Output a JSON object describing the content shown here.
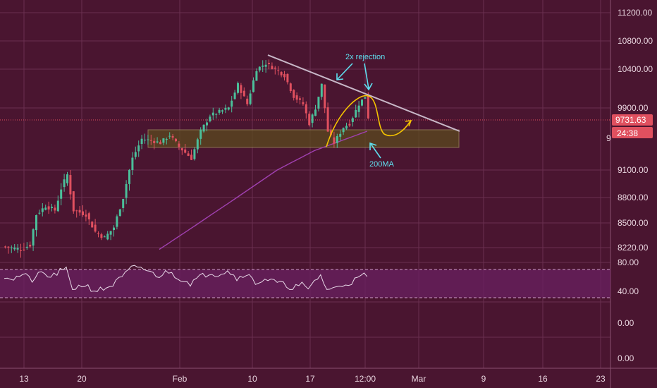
{
  "colors": {
    "background": "#4a1530",
    "grid": "#6a3050",
    "candle_up": "#4bbf9a",
    "candle_down": "#e0505f",
    "ma200": "#a040b0",
    "trendline": "#c8b8c8",
    "zone_fill": "#5a4a1e",
    "zone_stroke": "#a09060",
    "projection": "#f5c400",
    "annotation": "#5fe0f0",
    "rsi_line": "#e8d8e8",
    "rsi_band": "#6a2060",
    "price_tag": "#e0505f"
  },
  "chart_data": {
    "type": "candlestick",
    "price_axis": {
      "ticks": [
        "11200.00",
        "10800.00",
        "10400.00",
        "9900.00",
        "9100.00",
        "8800.00",
        "8500.00",
        "8220.00"
      ],
      "range": [
        8120,
        11400
      ]
    },
    "time_axis": {
      "ticks": [
        "13",
        "20",
        "Feb",
        "10",
        "17",
        "12:00",
        "Mar",
        "9",
        "16",
        "23"
      ]
    },
    "current_price": "9731.63",
    "countdown": "24:38",
    "partial_tick": "9",
    "series": [
      {
        "name": "price",
        "anchors": [
          [
            0,
            8230
          ],
          [
            5,
            8200
          ],
          [
            8,
            8250
          ],
          [
            10,
            8600
          ],
          [
            13,
            8700
          ],
          [
            16,
            8650
          ],
          [
            18,
            8900
          ],
          [
            20,
            9050
          ],
          [
            22,
            8650
          ],
          [
            26,
            8600
          ],
          [
            29,
            8400
          ],
          [
            32,
            8330
          ],
          [
            35,
            8450
          ],
          [
            38,
            8800
          ],
          [
            41,
            9250
          ],
          [
            44,
            9500
          ],
          [
            47,
            9480
          ],
          [
            50,
            9450
          ],
          [
            53,
            9550
          ],
          [
            56,
            9400
          ],
          [
            60,
            9250
          ],
          [
            63,
            9600
          ],
          [
            66,
            9800
          ],
          [
            69,
            9850
          ],
          [
            72,
            9900
          ],
          [
            75,
            10200
          ],
          [
            78,
            9950
          ],
          [
            81,
            10400
          ],
          [
            84,
            10480
          ],
          [
            87,
            10400
          ],
          [
            90,
            10320
          ],
          [
            93,
            10050
          ],
          [
            96,
            9950
          ],
          [
            98,
            9700
          ],
          [
            100,
            9900
          ],
          [
            102,
            10200
          ],
          [
            104,
            9600
          ],
          [
            106,
            9450
          ],
          [
            109,
            9650
          ],
          [
            111,
            9700
          ],
          [
            114,
            9950
          ],
          [
            116,
            10050
          ],
          [
            117,
            9780
          ]
        ]
      },
      {
        "name": "200MA",
        "anchors": [
          [
            50,
            8200
          ],
          [
            62,
            8480
          ],
          [
            75,
            8800
          ],
          [
            88,
            9100
          ],
          [
            100,
            9350
          ],
          [
            117,
            9600
          ]
        ]
      },
      {
        "name": "RSI",
        "anchors": [
          [
            0,
            62
          ],
          [
            3,
            58
          ],
          [
            6,
            64
          ],
          [
            9,
            56
          ],
          [
            12,
            66
          ],
          [
            15,
            60
          ],
          [
            18,
            68
          ],
          [
            20,
            70
          ],
          [
            22,
            45
          ],
          [
            26,
            50
          ],
          [
            29,
            42
          ],
          [
            32,
            44
          ],
          [
            35,
            50
          ],
          [
            38,
            60
          ],
          [
            41,
            72
          ],
          [
            44,
            74
          ],
          [
            47,
            66
          ],
          [
            50,
            62
          ],
          [
            53,
            68
          ],
          [
            56,
            60
          ],
          [
            60,
            52
          ],
          [
            63,
            60
          ],
          [
            66,
            66
          ],
          [
            69,
            64
          ],
          [
            72,
            70
          ],
          [
            75,
            58
          ],
          [
            78,
            66
          ],
          [
            81,
            52
          ],
          [
            84,
            58
          ],
          [
            87,
            54
          ],
          [
            90,
            50
          ],
          [
            93,
            46
          ],
          [
            96,
            50
          ],
          [
            98,
            42
          ],
          [
            100,
            56
          ],
          [
            102,
            62
          ],
          [
            104,
            44
          ],
          [
            106,
            44
          ],
          [
            109,
            50
          ],
          [
            111,
            52
          ],
          [
            114,
            58
          ],
          [
            116,
            64
          ],
          [
            117,
            58
          ]
        ]
      }
    ],
    "rsi_axis": {
      "ticks": [
        "80.00",
        "40.00",
        "0.00",
        "0.00"
      ]
    },
    "annotations": {
      "rejection_label": "2x rejection",
      "ma_label": "200MA"
    }
  }
}
